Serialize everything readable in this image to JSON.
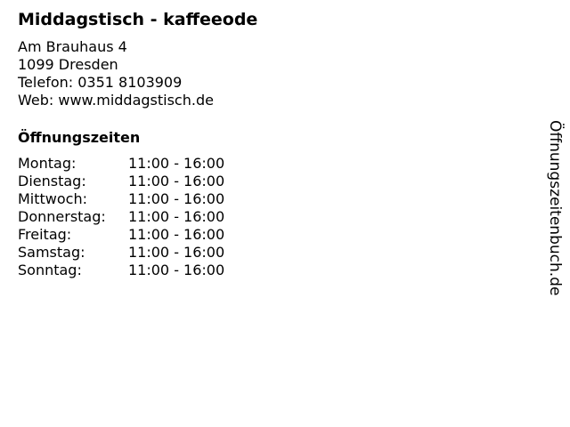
{
  "title": "Middagstisch - kaffeeode",
  "address": {
    "street": "Am Brauhaus 4",
    "city": "1099 Dresden",
    "phone": "Telefon: 0351 8103909",
    "web": "Web: www.middagstisch.de"
  },
  "hours_heading": "Öffnungszeiten",
  "hours": [
    {
      "day": "Montag:",
      "time": "11:00 - 16:00"
    },
    {
      "day": "Dienstag:",
      "time": "11:00 - 16:00"
    },
    {
      "day": "Mittwoch:",
      "time": "11:00 - 16:00"
    },
    {
      "day": "Donnerstag:",
      "time": "11:00 - 16:00"
    },
    {
      "day": "Freitag:",
      "time": "11:00 - 16:00"
    },
    {
      "day": "Samstag:",
      "time": "11:00 - 16:00"
    },
    {
      "day": "Sonntag:",
      "time": "11:00 - 16:00"
    }
  ],
  "side_label": "Öffnungszeitenbuch.de"
}
